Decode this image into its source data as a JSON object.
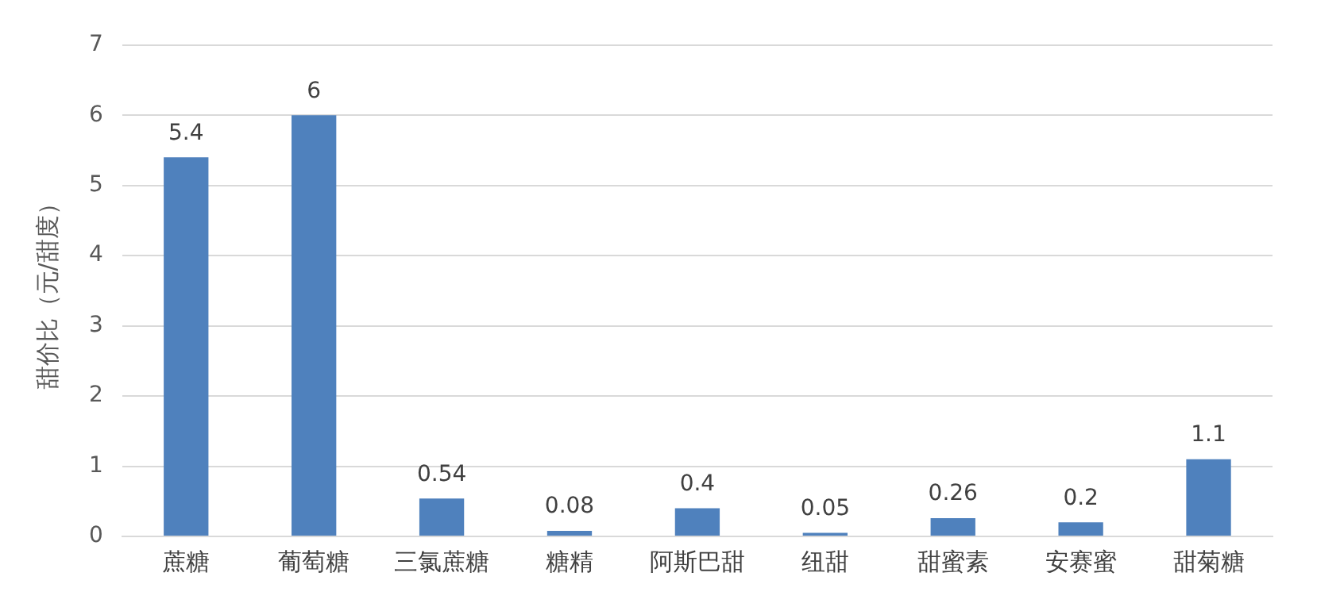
{
  "chart_data": {
    "type": "bar",
    "ylabel": "甜价比（元/甜度）",
    "categories": [
      "蔗糖",
      "葡萄糖",
      "三氯蔗糖",
      "糖精",
      "阿斯巴甜",
      "纽甜",
      "甜蜜素",
      "安赛蜜",
      "甜菊糖"
    ],
    "values": [
      5.4,
      6,
      0.54,
      0.08,
      0.4,
      0.05,
      0.26,
      0.2,
      1.1
    ],
    "color": "#4f81bd",
    "ylim": [
      0,
      7
    ],
    "yticks": [
      0,
      1,
      2,
      3,
      4,
      5,
      6,
      7
    ],
    "grid": "y",
    "legend": false,
    "data_labels": true
  }
}
